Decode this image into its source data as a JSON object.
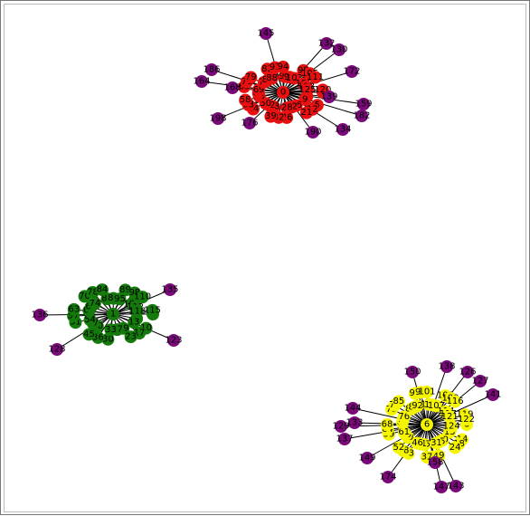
{
  "colors": {
    "red": "#e8110f",
    "green": "#147a0c",
    "yellow": "#f5f500",
    "purple": "#7a0a7a",
    "edge": "#000000"
  },
  "graph": {
    "clusters": [
      {
        "id": "red",
        "color": "red",
        "hub_label": "0",
        "core_labels": [
          "2",
          "3",
          "5",
          "9",
          "12",
          "16",
          "21",
          "22",
          "26",
          "28",
          "32",
          "38",
          "39",
          "42",
          "44",
          "50",
          "53",
          "56",
          "58",
          "62",
          "65",
          "69",
          "71",
          "73",
          "79",
          "81",
          "82",
          "88",
          "91",
          "93",
          "94",
          "97",
          "99",
          "103",
          "105",
          "108",
          "111",
          "113",
          "120",
          "125"
        ],
        "leaves": [
          {
            "label": "145"
          },
          {
            "label": "132"
          },
          {
            "label": "130"
          },
          {
            "label": "186"
          },
          {
            "label": "164"
          },
          {
            "label": "168"
          },
          {
            "label": "172"
          },
          {
            "label": "139"
          },
          {
            "label": "159"
          },
          {
            "label": "182"
          },
          {
            "label": "198"
          },
          {
            "label": "176"
          },
          {
            "label": "190"
          },
          {
            "label": "134"
          }
        ]
      },
      {
        "id": "green",
        "color": "green",
        "hub_label": "1",
        "core_labels": [
          "4",
          "7",
          "10",
          "13",
          "17",
          "19",
          "23",
          "27",
          "30",
          "33",
          "36",
          "40",
          "45",
          "47",
          "51",
          "54",
          "57",
          "60",
          "63",
          "66",
          "70",
          "74",
          "78",
          "80",
          "84",
          "86",
          "89",
          "95",
          "98",
          "104",
          "110",
          "112",
          "115",
          "118"
        ],
        "leaves": [
          {
            "label": "135"
          },
          {
            "label": "136"
          },
          {
            "label": "123"
          },
          {
            "label": "128"
          }
        ]
      },
      {
        "id": "yellow",
        "color": "yellow",
        "hub_label": "6",
        "core_labels": [
          "8",
          "11",
          "14",
          "15",
          "18",
          "20",
          "24",
          "25",
          "29",
          "31",
          "34",
          "35",
          "37",
          "41",
          "43",
          "46",
          "48",
          "49",
          "52",
          "55",
          "59",
          "61",
          "64",
          "67",
          "68",
          "72",
          "75",
          "76",
          "77",
          "83",
          "85",
          "87",
          "90",
          "92",
          "96",
          "100",
          "101",
          "102",
          "106",
          "107",
          "109",
          "114",
          "116",
          "117",
          "119",
          "121",
          "122",
          "124"
        ],
        "leaves": [
          {
            "label": "150"
          },
          {
            "label": "138"
          },
          {
            "label": "126"
          },
          {
            "label": "127"
          },
          {
            "label": "141"
          },
          {
            "label": "144"
          },
          {
            "label": "133"
          },
          {
            "label": "129"
          },
          {
            "label": "137"
          },
          {
            "label": "149"
          },
          {
            "label": "147"
          },
          {
            "label": "143"
          },
          {
            "label": "158"
          },
          {
            "label": "174"
          }
        ]
      }
    ]
  }
}
